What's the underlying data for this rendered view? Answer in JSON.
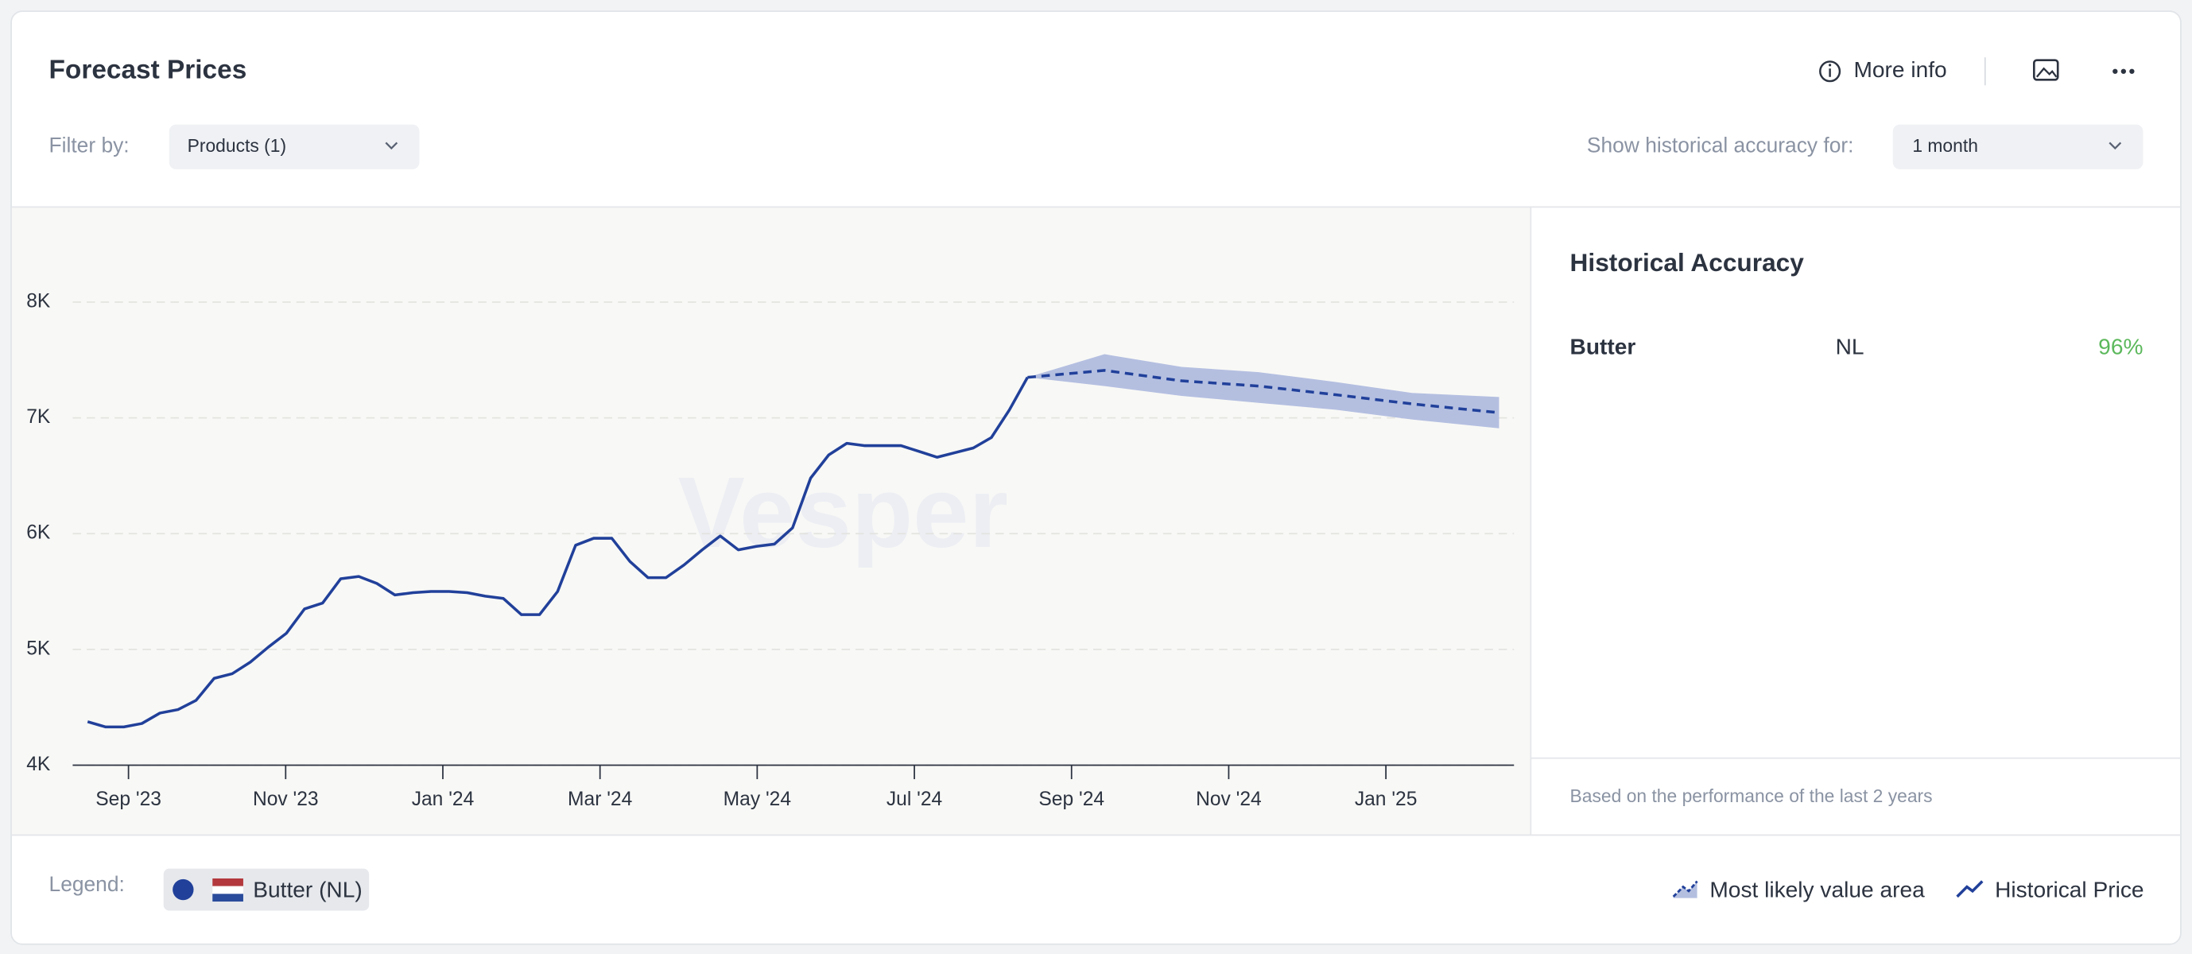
{
  "header": {
    "title": "Forecast Prices",
    "more_info": "More info"
  },
  "filters": {
    "filter_label": "Filter by:",
    "product_filter": "Products (1)",
    "accuracy_label": "Show historical accuracy for:",
    "accuracy_period": "1 month"
  },
  "chart_data": {
    "type": "line",
    "watermark": "Vesper",
    "xlim": [
      -0.71,
      17.63
    ],
    "xticks": [
      {
        "value": 0,
        "label": "Sep '23"
      },
      {
        "value": 2,
        "label": "Nov '23"
      },
      {
        "value": 4,
        "label": "Jan '24"
      },
      {
        "value": 6,
        "label": "Mar '24"
      },
      {
        "value": 8,
        "label": "May '24"
      },
      {
        "value": 10,
        "label": "Jul '24"
      },
      {
        "value": 12,
        "label": "Sep '24"
      },
      {
        "value": 14,
        "label": "Nov '24"
      },
      {
        "value": 16,
        "label": "Jan '25"
      }
    ],
    "ylim": [
      4000,
      8500
    ],
    "yticks": [
      {
        "value": 4000,
        "label": "4K"
      },
      {
        "value": 5000,
        "label": "5K"
      },
      {
        "value": 6000,
        "label": "6K"
      },
      {
        "value": 7000,
        "label": "7K"
      },
      {
        "value": 8000,
        "label": "8K"
      }
    ],
    "grid": true,
    "series": [
      {
        "name": "Butter (NL)",
        "color": "#21409a",
        "x": [
          -0.52,
          -0.29,
          -0.06,
          0.17,
          0.4,
          0.63,
          0.86,
          1.09,
          1.32,
          1.55,
          1.78,
          2.01,
          2.24,
          2.47,
          2.7,
          2.93,
          3.16,
          3.39,
          3.62,
          3.85,
          4.08,
          4.31,
          4.54,
          4.77,
          5,
          5.23,
          5.46,
          5.69,
          5.92,
          6.15,
          6.38,
          6.61,
          6.84,
          7.07,
          7.3,
          7.53,
          7.76,
          7.99,
          8.22,
          8.45,
          8.68,
          8.91,
          9.14,
          9.37,
          9.6,
          9.83,
          10.06,
          10.29,
          10.52,
          10.75,
          10.98,
          11.21,
          11.44
        ],
        "values": [
          4375,
          4330,
          4330,
          4360,
          4450,
          4480,
          4560,
          4750,
          4790,
          4890,
          5020,
          5140,
          5350,
          5400,
          5610,
          5630,
          5570,
          5470,
          5490,
          5500,
          5500,
          5490,
          5460,
          5440,
          5300,
          5300,
          5500,
          5900,
          5960,
          5960,
          5760,
          5620,
          5620,
          5730,
          5860,
          5980,
          5860,
          5890,
          5910,
          6050,
          6480,
          6680,
          6780,
          6760,
          6760,
          6760,
          6710,
          6660,
          6700,
          6740,
          6830,
          7070,
          7350
        ]
      }
    ],
    "forecast": {
      "color": "#21409a",
      "band_color": "#b4bfe0",
      "x": [
        11.44,
        12.42,
        13.4,
        14.38,
        15.36,
        16.34,
        17.44
      ],
      "values": [
        7350,
        7410,
        7320,
        7275,
        7200,
        7120,
        7045
      ],
      "upper": [
        7350,
        7550,
        7440,
        7395,
        7310,
        7215,
        7180
      ],
      "lower": [
        7350,
        7275,
        7190,
        7130,
        7070,
        6985,
        6910
      ]
    },
    "band_label": "Most likely value area",
    "line_label": "Historical Price"
  },
  "accuracy_panel": {
    "title": "Historical Accuracy",
    "rows": [
      {
        "product": "Butter",
        "region": "NL",
        "accuracy": "96%"
      }
    ],
    "note": "Based on the performance of the last 2 years"
  },
  "legend": {
    "label": "Legend:"
  }
}
